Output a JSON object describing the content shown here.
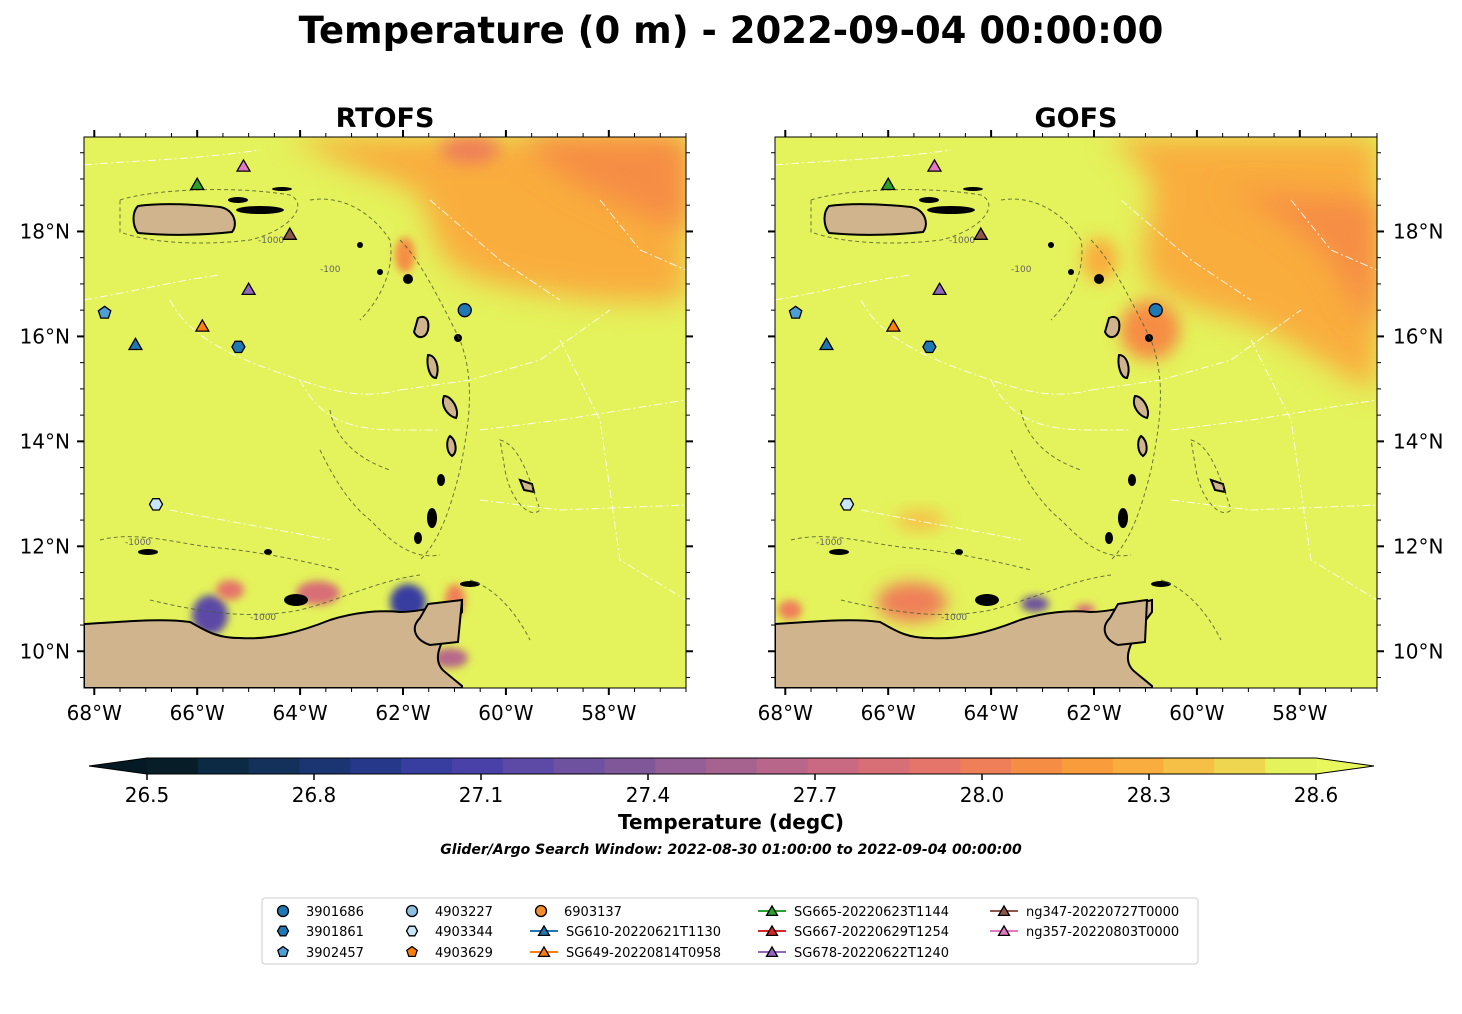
{
  "chart_data": {
    "type": "heatmap",
    "title": "Temperature (0 m) - 2022-09-04 00:00:00",
    "panels": [
      {
        "name": "RTOFS"
      },
      {
        "name": "GOFS"
      }
    ],
    "xlim": [
      -68.2,
      -56.5
    ],
    "ylim": [
      9.3,
      19.8
    ],
    "x_ticks": [
      -68,
      -66,
      -64,
      -62,
      -60,
      -58
    ],
    "x_tick_labels": [
      "68°W",
      "66°W",
      "64°W",
      "62°W",
      "60°W",
      "58°W"
    ],
    "y_ticks": [
      10,
      12,
      14,
      16,
      18
    ],
    "y_tick_labels": [
      "10°N",
      "12°N",
      "14°N",
      "16°N",
      "18°N"
    ],
    "contour_labels": [
      "-100",
      "-1000"
    ],
    "colorbar": {
      "label": "Temperature (degC)",
      "vmin": 26.5,
      "vmax": 28.6,
      "extend": "both",
      "ticks": [
        26.5,
        26.8,
        27.1,
        27.4,
        27.7,
        28.0,
        28.3,
        28.6
      ],
      "tick_labels": [
        "26.5",
        "26.8",
        "27.1",
        "27.4",
        "27.7",
        "28.0",
        "28.3",
        "28.6"
      ],
      "colors": [
        "#071e28",
        "#0c2a44",
        "#13315b",
        "#1b3472",
        "#26388a",
        "#383ea0",
        "#4a41a8",
        "#5c4aa6",
        "#6e519f",
        "#805899",
        "#935f96",
        "#a66390",
        "#b8678a",
        "#c96a82",
        "#d86e76",
        "#e5756a",
        "#ef7f58",
        "#f68d45",
        "#f99c3b",
        "#f9ad3e",
        "#f6c046",
        "#efd651",
        "#e4f25b"
      ],
      "under_color": "#051a24",
      "over_color": "#e8f75e"
    },
    "subtitle": "Glider/Argo Search Window: 2022-08-30 01:00:00 to 2022-09-04 00:00:00",
    "series": [
      {
        "name": "3901686",
        "marker": "circle",
        "color": "#1f77b4",
        "lon": -60.8,
        "lat": 16.5
      },
      {
        "name": "3901861",
        "marker": "hexagon",
        "color": "#1f77b4",
        "lon": -65.2,
        "lat": 15.8
      },
      {
        "name": "3902457",
        "marker": "pentagon",
        "color": "#4e9fd6",
        "lon": -67.8,
        "lat": 16.45
      },
      {
        "name": "4903227",
        "marker": "circle",
        "color": "#8fbfe0",
        "lon": null,
        "lat": null
      },
      {
        "name": "4903344",
        "marker": "hexagon",
        "color": "#c7e6f7",
        "lon": -66.8,
        "lat": 12.8
      },
      {
        "name": "4903629",
        "marker": "pentagon",
        "color": "#ff7f0e",
        "lon": null,
        "lat": null
      },
      {
        "name": "6903137",
        "marker": "circle",
        "color": "#f28e2b",
        "lon": null,
        "lat": null
      },
      {
        "name": "SG610-20220621T1130",
        "marker": "triangle",
        "color": "#1f77b4",
        "lon": -67.2,
        "lat": 15.85
      },
      {
        "name": "SG649-20220814T0958",
        "marker": "triangle",
        "color": "#ff7f0e",
        "lon": -65.9,
        "lat": 16.2
      },
      {
        "name": "SG665-20220623T1144",
        "marker": "triangle",
        "color": "#2ca02c",
        "lon": -66.0,
        "lat": 18.9
      },
      {
        "name": "SG667-20220629T1254",
        "marker": "triangle",
        "color": "#d62728",
        "lon": null,
        "lat": null
      },
      {
        "name": "SG678-20220622T1240",
        "marker": "triangle",
        "color": "#9467bd",
        "lon": -65.0,
        "lat": 16.9
      },
      {
        "name": "ng347-20220727T0000",
        "marker": "triangle",
        "color": "#8c564b",
        "lon": -64.2,
        "lat": 17.95
      },
      {
        "name": "ng357-20220803T0000",
        "marker": "triangle",
        "color": "#e377c2",
        "lon": -65.1,
        "lat": 19.25
      }
    ],
    "land_color": "#d0b48e",
    "ocean_base_color": "#e4f25b"
  }
}
